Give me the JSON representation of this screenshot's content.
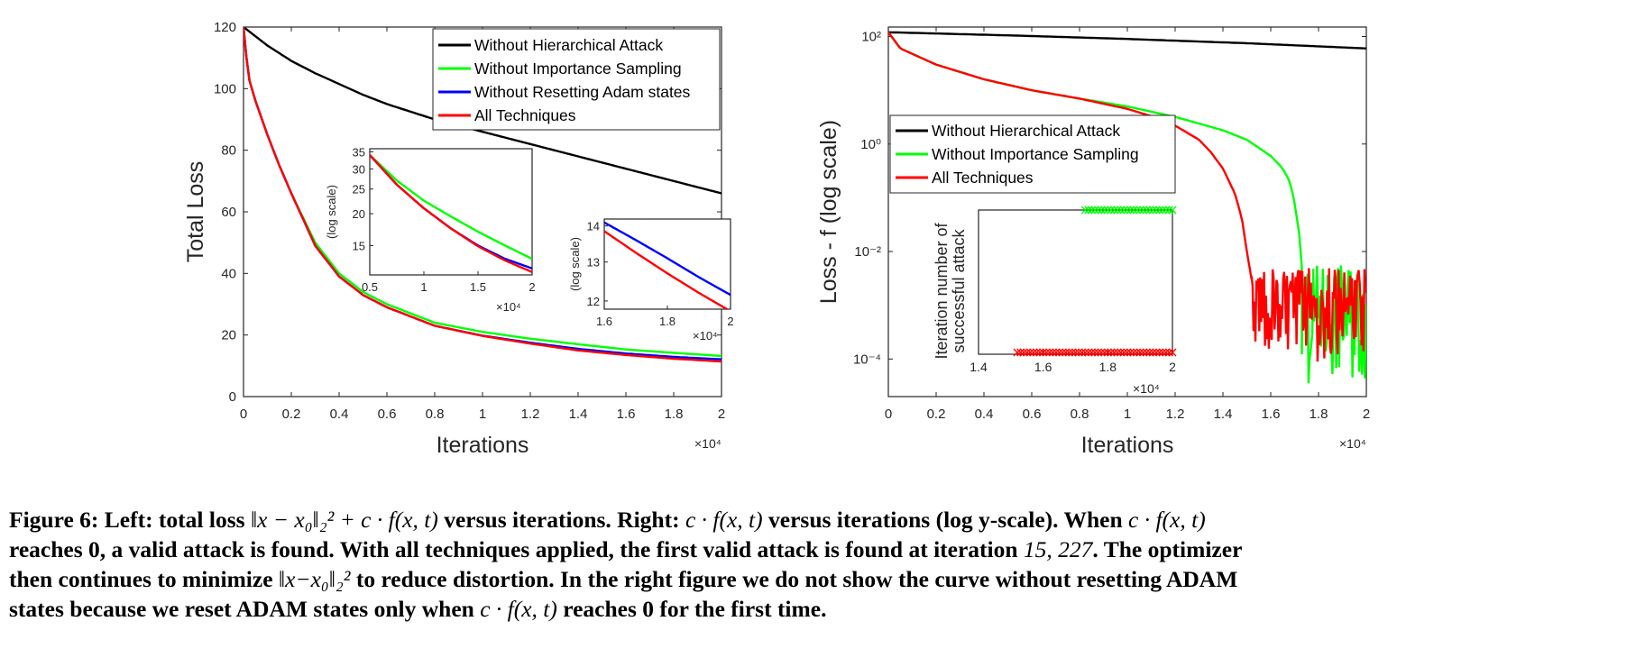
{
  "figure": {
    "caption_lines": [
      [
        "Figure 6: Left: total loss ",
        {
          "m": "‖x − x₀‖₂² + c · f(x, t)"
        },
        " versus iterations. Right: ",
        {
          "m": "c · f(x, t)"
        },
        " versus iterations (log y-scale). When ",
        {
          "m": "c · f(x, t)"
        }
      ],
      [
        "reaches 0, a valid attack is found. With all techniques applied, the first valid attack is found at iteration ",
        {
          "m": "15, 227"
        },
        ". The optimizer"
      ],
      [
        "then continues to minimize ",
        {
          "m": "‖x−x₀‖₂²"
        },
        " to reduce distortion. In the right figure we do not show the curve without resetting ADAM"
      ],
      [
        "states because we reset ADAM states only when ",
        {
          "m": "c · f(x, t)"
        },
        " reaches 0 for the first time."
      ]
    ]
  },
  "colors": {
    "black": "#000000",
    "green": "#00ff00",
    "blue": "#0000ff",
    "red": "#ff0000",
    "axis": "#262626"
  },
  "chart_data": [
    {
      "id": "left-main",
      "type": "line",
      "xlabel": "Iterations",
      "ylabel": "Total Loss",
      "x_multiplier": "×10⁴",
      "xlim": [
        0,
        2
      ],
      "ylim": [
        0,
        120
      ],
      "xticks": [
        0,
        0.2,
        0.4,
        0.6,
        0.8,
        1,
        1.2,
        1.4,
        1.6,
        1.8,
        2
      ],
      "yticks": [
        0,
        20,
        40,
        60,
        80,
        100,
        120
      ],
      "legend_position": "top-right",
      "series": [
        {
          "name": "Without Hierarchical Attack",
          "color": "black",
          "x": [
            0,
            0.1,
            0.2,
            0.3,
            0.4,
            0.5,
            0.6,
            0.7,
            0.8,
            0.9,
            1.0,
            1.2,
            1.4,
            1.6,
            1.8,
            2.0
          ],
          "y": [
            120,
            114,
            109,
            105,
            101.5,
            98,
            95,
            92.5,
            90,
            88,
            86,
            82,
            78,
            74,
            70,
            66
          ]
        },
        {
          "name": "Without Importance Sampling",
          "color": "green",
          "x": [
            0,
            0.02,
            0.05,
            0.1,
            0.15,
            0.2,
            0.3,
            0.4,
            0.5,
            0.6,
            0.8,
            1.0,
            1.2,
            1.4,
            1.6,
            1.8,
            2.0
          ],
          "y": [
            120,
            104,
            96,
            85,
            75,
            66,
            50,
            40,
            34,
            30,
            24,
            21,
            18.8,
            17,
            15.3,
            14.2,
            13.2
          ]
        },
        {
          "name": "Without Resetting Adam states",
          "color": "blue",
          "x": [
            0,
            0.02,
            0.05,
            0.1,
            0.15,
            0.2,
            0.3,
            0.4,
            0.5,
            0.6,
            0.8,
            1.0,
            1.2,
            1.4,
            1.6,
            1.8,
            2.0
          ],
          "y": [
            120,
            104,
            96,
            85,
            75,
            66,
            49,
            39,
            33,
            29,
            23,
            19.8,
            17.5,
            15.5,
            14,
            12.9,
            12.1
          ]
        },
        {
          "name": "All Techniques",
          "color": "red",
          "x": [
            0,
            0.02,
            0.05,
            0.1,
            0.15,
            0.2,
            0.3,
            0.4,
            0.5,
            0.6,
            0.8,
            1.0,
            1.2,
            1.4,
            1.6,
            1.8,
            2.0
          ],
          "y": [
            120,
            104,
            96,
            85,
            75,
            66,
            49,
            39,
            33,
            29,
            23,
            19.7,
            17.2,
            15,
            13.5,
            12.3,
            11.4
          ]
        }
      ]
    },
    {
      "id": "left-inset-1",
      "type": "line",
      "ylabel": "(log scale)",
      "x_multiplier": "×10⁴",
      "xlim": [
        0.5,
        2
      ],
      "ylim": [
        11.5,
        36
      ],
      "yscale": "log",
      "xticks": [
        0.5,
        1,
        1.5,
        2
      ],
      "yticks": [
        15,
        20,
        25,
        30,
        35
      ],
      "series": [
        {
          "name": "Without Importance Sampling",
          "color": "green",
          "x": [
            0.5,
            0.75,
            1.0,
            1.25,
            1.5,
            1.75,
            2.0
          ],
          "y": [
            34,
            27,
            22.5,
            19.5,
            17,
            15,
            13.3
          ]
        },
        {
          "name": "Without Resetting Adam states",
          "color": "blue",
          "x": [
            0.5,
            0.75,
            1.0,
            1.25,
            1.5,
            1.75,
            2.0
          ],
          "y": [
            34,
            26,
            21,
            17.5,
            15,
            13.3,
            12.2
          ]
        },
        {
          "name": "All Techniques",
          "color": "red",
          "x": [
            0.5,
            0.75,
            1.0,
            1.25,
            1.5,
            1.75,
            2.0
          ],
          "y": [
            34,
            26,
            21,
            17.5,
            14.9,
            13.1,
            11.8
          ]
        }
      ]
    },
    {
      "id": "left-inset-2",
      "type": "line",
      "ylabel": "(log scale)",
      "x_multiplier": "×10⁴",
      "xlim": [
        1.6,
        2
      ],
      "ylim": [
        11.8,
        14.2
      ],
      "yscale": "log",
      "xticks": [
        1.6,
        1.8,
        2
      ],
      "yticks": [
        12,
        13,
        14
      ],
      "series": [
        {
          "name": "Without Resetting Adam states",
          "color": "blue",
          "x": [
            1.6,
            1.7,
            1.8,
            1.9,
            2.0
          ],
          "y": [
            14.1,
            13.6,
            13.1,
            12.6,
            12.15
          ]
        },
        {
          "name": "All Techniques",
          "color": "red",
          "x": [
            1.6,
            1.7,
            1.8,
            1.9,
            2.0
          ],
          "y": [
            13.85,
            13.25,
            12.7,
            12.2,
            11.75
          ]
        }
      ]
    },
    {
      "id": "right-main",
      "type": "line",
      "xlabel": "Iterations",
      "ylabel": "Loss - f (log scale)",
      "x_multiplier": "×10⁴",
      "xlim": [
        0,
        2
      ],
      "ylim": [
        2e-05,
        150
      ],
      "yscale": "log",
      "xticks": [
        0,
        0.2,
        0.4,
        0.6,
        0.8,
        1,
        1.2,
        1.4,
        1.6,
        1.8,
        2
      ],
      "yticks": [
        "10⁻⁴",
        "10⁻²",
        "10⁰",
        "10²"
      ],
      "legend_position": "middle-left",
      "series": [
        {
          "name": "Without Hierarchical Attack",
          "color": "black",
          "x": [
            0,
            0.5,
            1.0,
            1.5,
            2.0
          ],
          "y": [
            120,
            105,
            90,
            75,
            60
          ]
        },
        {
          "name": "Without Importance Sampling",
          "color": "green",
          "x": [
            0,
            0.05,
            0.2,
            0.4,
            0.6,
            0.8,
            1.0,
            1.2,
            1.4,
            1.5,
            1.6,
            1.65,
            1.68,
            1.7,
            1.72,
            1.73
          ],
          "y": [
            120,
            60,
            30,
            16,
            10,
            7,
            5,
            3.2,
            1.8,
            1.2,
            0.6,
            0.35,
            0.2,
            0.08,
            0.02,
            0.005
          ],
          "noise_after": 1.73,
          "noise_range": [
            3e-05,
            0.006
          ]
        },
        {
          "name": "All Techniques",
          "color": "red",
          "x": [
            0,
            0.05,
            0.2,
            0.4,
            0.6,
            0.8,
            1.0,
            1.1,
            1.2,
            1.3,
            1.35,
            1.4,
            1.45,
            1.48,
            1.5,
            1.52
          ],
          "y": [
            120,
            60,
            30,
            16,
            10,
            7,
            4.5,
            3.3,
            2.2,
            1.2,
            0.7,
            0.35,
            0.12,
            0.04,
            0.01,
            0.003
          ],
          "noise_after": 1.52,
          "noise_range": [
            8e-05,
            0.005
          ]
        }
      ]
    },
    {
      "id": "right-inset",
      "type": "scatter",
      "ylabel": "Iteration number of successful attack",
      "x_multiplier": "×10⁴",
      "xlim": [
        1.4,
        2
      ],
      "xticks": [
        1.4,
        1.6,
        1.8,
        2
      ],
      "series": [
        {
          "name": "Without Importance Sampling",
          "color": "green",
          "marker": "x",
          "x_from": 1.73,
          "x_to": 2.0,
          "row": "top"
        },
        {
          "name": "All Techniques",
          "color": "red",
          "marker": "x",
          "x_from": 1.52,
          "x_to": 2.0,
          "row": "bottom"
        }
      ]
    }
  ]
}
